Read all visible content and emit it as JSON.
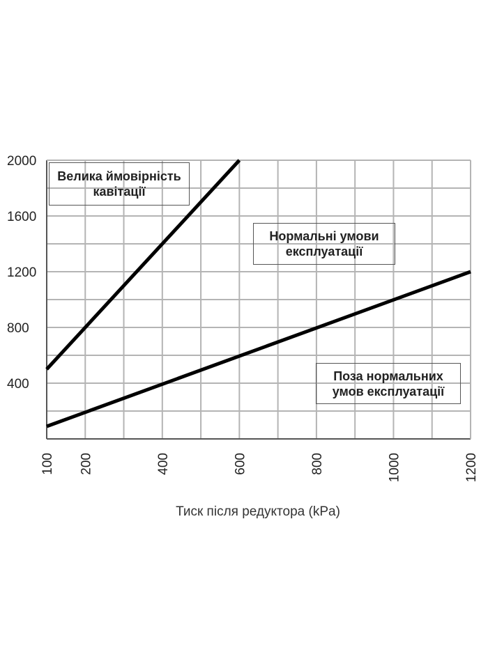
{
  "chart_data": {
    "type": "line",
    "xlabel": "Тиск після редуктора (kPa)",
    "ylabel": "",
    "x_ticks": [
      100,
      200,
      400,
      600,
      800,
      1000,
      1200
    ],
    "y_ticks": [
      400,
      800,
      1200,
      1600,
      2000
    ],
    "xlim": [
      100,
      1200
    ],
    "ylim": [
      0,
      2000
    ],
    "grid": true,
    "series": [
      {
        "x": [
          100,
          600
        ],
        "y": [
          500,
          2000
        ]
      },
      {
        "x": [
          100,
          1200
        ],
        "y": [
          90,
          1200
        ]
      }
    ],
    "annotations": [
      {
        "id": "cavitation",
        "lines": [
          "Велика ймовірність",
          "кавітації"
        ],
        "color": "#dea57a"
      },
      {
        "id": "normal",
        "lines": [
          "Нормальні умови",
          "експлуатації"
        ],
        "color": "#cdeec4"
      },
      {
        "id": "outside",
        "lines": [
          "Поза нормальних",
          "умов експлуатації"
        ],
        "color": "#d9d9d9"
      }
    ]
  }
}
